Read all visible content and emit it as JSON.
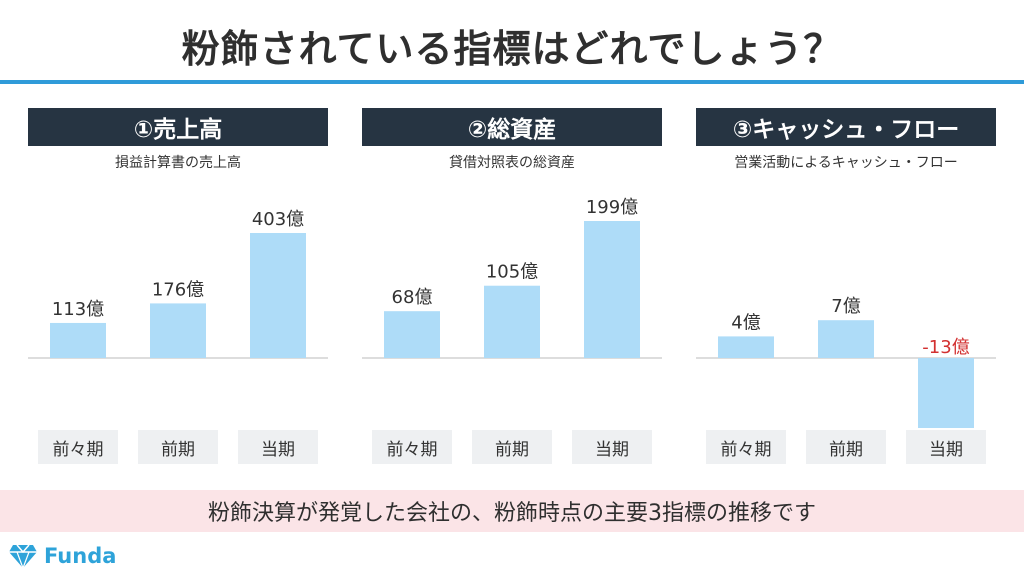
{
  "title": "粉飾されている指標はどれでしょう？",
  "footer": "粉飾決算が発覚した会社の、粉飾時点の主要3指標の推移です",
  "logo": {
    "text": "Funda",
    "icon": "diamond-logo-icon"
  },
  "colors": {
    "bar": "#aedcf8",
    "header_bg": "#263442",
    "accent": "#2f9bd9",
    "negative_label": "#d23030",
    "footer_bg": "#fbe4e7"
  },
  "chart_data": [
    {
      "type": "bar",
      "title": "①売上高",
      "subtitle": "損益計算書の売上高",
      "categories": [
        "前々期",
        "前期",
        "当期"
      ],
      "values": [
        113,
        176,
        403
      ],
      "value_labels": [
        "113億",
        "176億",
        "403億"
      ]
    },
    {
      "type": "bar",
      "title": "②総資産",
      "subtitle": "貸借対照表の総資産",
      "categories": [
        "前々期",
        "前期",
        "当期"
      ],
      "values": [
        68,
        105,
        199
      ],
      "value_labels": [
        "68億",
        "105億",
        "199億"
      ]
    },
    {
      "type": "bar",
      "title": "③キャッシュ・フロー",
      "subtitle": "営業活動によるキャッシュ・フロー",
      "categories": [
        "前々期",
        "前期",
        "当期"
      ],
      "values": [
        4,
        7,
        -13
      ],
      "value_labels": [
        "4億",
        "7億",
        "-13億"
      ]
    }
  ]
}
